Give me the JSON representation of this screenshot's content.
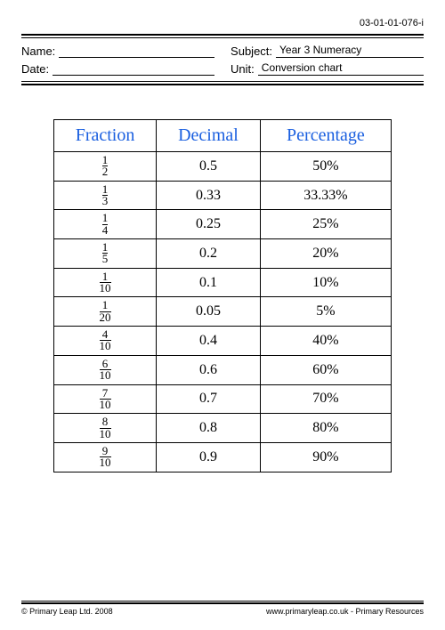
{
  "doc_id": "03-01-01-076-i",
  "meta": {
    "name_label": "Name:",
    "date_label": "Date:",
    "subject_label": "Subject:",
    "unit_label": "Unit:",
    "subject_value": "Year 3 Numeracy",
    "unit_value": "Conversion chart"
  },
  "table": {
    "headers": {
      "c1": "Fraction",
      "c2": "Decimal",
      "c3": "Percentage"
    },
    "header_color": "#1a5fe0",
    "border_color": "#000000",
    "rows": [
      {
        "num": "1",
        "den": "2",
        "decimal": "0.5",
        "percent": "50%"
      },
      {
        "num": "1",
        "den": "3",
        "decimal": "0.33",
        "percent": "33.33%"
      },
      {
        "num": "1",
        "den": "4",
        "decimal": "0.25",
        "percent": "25%"
      },
      {
        "num": "1",
        "den": "5",
        "decimal": "0.2",
        "percent": "20%"
      },
      {
        "num": "1",
        "den": "10",
        "decimal": "0.1",
        "percent": "10%"
      },
      {
        "num": "1",
        "den": "20",
        "decimal": "0.05",
        "percent": "5%"
      },
      {
        "num": "4",
        "den": "10",
        "decimal": "0.4",
        "percent": "40%"
      },
      {
        "num": "6",
        "den": "10",
        "decimal": "0.6",
        "percent": "60%"
      },
      {
        "num": "7",
        "den": "10",
        "decimal": "0.7",
        "percent": "70%"
      },
      {
        "num": "8",
        "den": "10",
        "decimal": "0.8",
        "percent": "80%"
      },
      {
        "num": "9",
        "den": "10",
        "decimal": "0.9",
        "percent": "90%"
      }
    ]
  },
  "footer": {
    "left": "© Primary Leap Ltd. 2008",
    "right": "www.primaryleap.co.uk  -  Primary Resources"
  }
}
